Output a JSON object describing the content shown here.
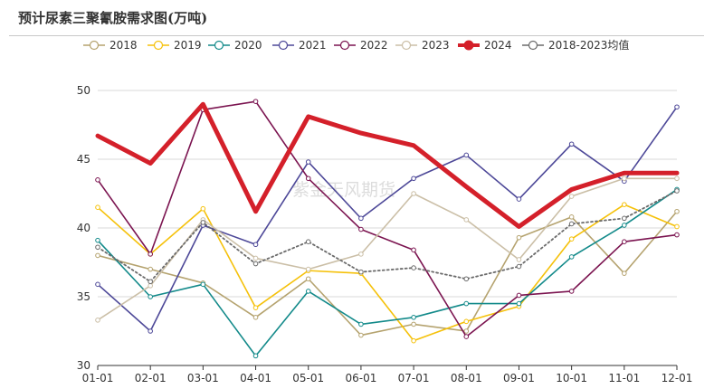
{
  "chart_data": {
    "type": "line",
    "title": "预计尿素三聚氰胺需求图(万吨)",
    "categories": [
      "01-01",
      "02-01",
      "03-01",
      "04-01",
      "05-01",
      "06-01",
      "07-01",
      "08-01",
      "09-01",
      "10-01",
      "11-01",
      "12-01"
    ],
    "ylim": [
      30,
      50
    ],
    "yticks": [
      30,
      35,
      40,
      45,
      50
    ],
    "grid": true,
    "legend_position": "top",
    "watermark": "紫金天风期货",
    "series": [
      {
        "name": "2018",
        "color": "#b5a36f",
        "values": [
          38.0,
          37.0,
          36.0,
          33.5,
          36.3,
          32.2,
          33.0,
          32.5,
          39.3,
          40.8,
          36.7,
          41.2
        ]
      },
      {
        "name": "2019",
        "color": "#f5c10a",
        "values": [
          41.5,
          38.1,
          41.4,
          34.2,
          36.9,
          36.7,
          31.8,
          33.2,
          34.3,
          39.2,
          41.7,
          40.1
        ]
      },
      {
        "name": "2020",
        "color": "#138a8a",
        "values": [
          39.1,
          35.0,
          35.9,
          30.7,
          35.4,
          33.0,
          33.5,
          34.5,
          34.5,
          37.9,
          40.2,
          42.8
        ]
      },
      {
        "name": "2021",
        "color": "#4d4898",
        "values": [
          35.9,
          32.5,
          40.2,
          38.8,
          44.8,
          40.7,
          43.6,
          45.3,
          42.1,
          46.1,
          43.4,
          48.8
        ]
      },
      {
        "name": "2022",
        "color": "#7b1450",
        "values": [
          43.5,
          38.1,
          48.6,
          49.2,
          43.6,
          39.9,
          38.4,
          32.1,
          35.1,
          35.4,
          39.0,
          39.5
        ]
      },
      {
        "name": "2023",
        "color": "#cbbfa7",
        "values": [
          33.3,
          35.8,
          40.6,
          37.8,
          37.0,
          38.1,
          42.5,
          40.6,
          37.7,
          42.3,
          43.6,
          43.6
        ]
      },
      {
        "name": "2024",
        "color": "#d4202a",
        "values": [
          46.7,
          44.7,
          49.0,
          41.2,
          48.1,
          46.9,
          46.0,
          43.0,
          40.1,
          42.8,
          44.0,
          44.0
        ]
      },
      {
        "name": "2018-2023均值",
        "color": "#6b6b6b",
        "values": [
          38.6,
          36.1,
          40.4,
          37.4,
          39.0,
          36.8,
          37.1,
          36.3,
          37.2,
          40.3,
          40.7,
          42.7
        ]
      }
    ]
  }
}
